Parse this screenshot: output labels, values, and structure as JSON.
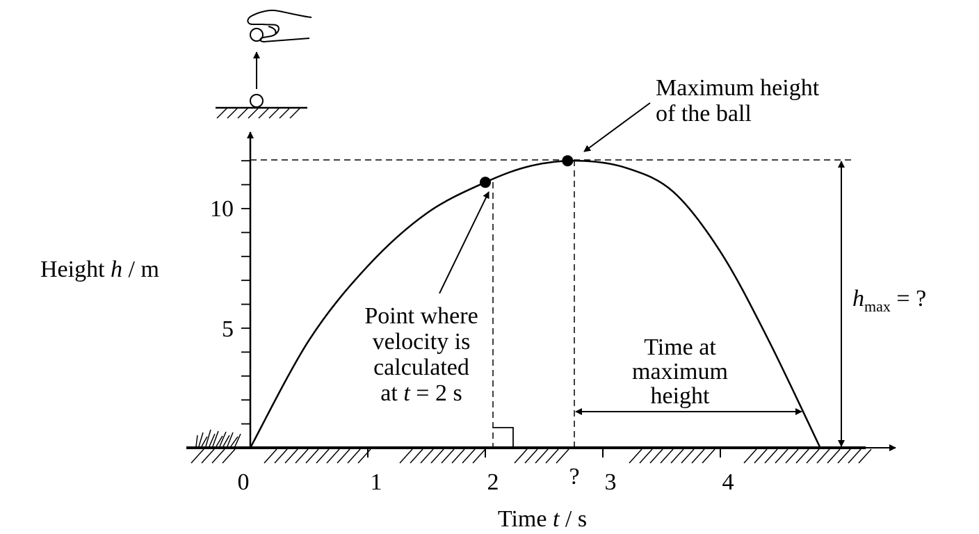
{
  "figure": {
    "y_axis_label": {
      "prefix": "Height ",
      "var": "h",
      "suffix": " / m"
    },
    "x_axis_label": {
      "prefix": "Time ",
      "var": "t",
      "suffix": " / s"
    },
    "y_ticks": [
      "10",
      "5"
    ],
    "x_ticks": [
      "0",
      "1",
      "2",
      "3",
      "4"
    ],
    "x_unknown_tick": "?",
    "max_height_note": {
      "line1": "Maximum height",
      "line2": "of the ball"
    },
    "velocity_note": {
      "line1": "Point where",
      "line2": "velocity is",
      "line3": "calculated",
      "line4_prefix": "at ",
      "line4_var": "t",
      "line4_suffix": " = 2 s"
    },
    "time_at_max_note": {
      "line1": "Time at",
      "line2": "maximum",
      "line3": "height"
    },
    "hmax_label": {
      "var": "h",
      "sub": "max",
      "suffix": " = ?"
    }
  },
  "chart_data": {
    "type": "line",
    "series": [
      {
        "x": [
          0,
          0.5,
          1,
          1.5,
          2,
          2.4,
          2.8,
          3.2,
          3.6,
          4,
          4.4,
          4.85
        ],
        "y": [
          0,
          4.5,
          7.6,
          9.8,
          11.1,
          11.8,
          12.0,
          11.7,
          10.7,
          8.2,
          4.6,
          0
        ]
      }
    ],
    "highlight_points": [
      {
        "x": 2,
        "y": 11.1
      },
      {
        "x": 2.7,
        "y": 12.0
      }
    ],
    "xlim": [
      0,
      5
    ],
    "ylim": [
      0,
      12.5
    ]
  }
}
